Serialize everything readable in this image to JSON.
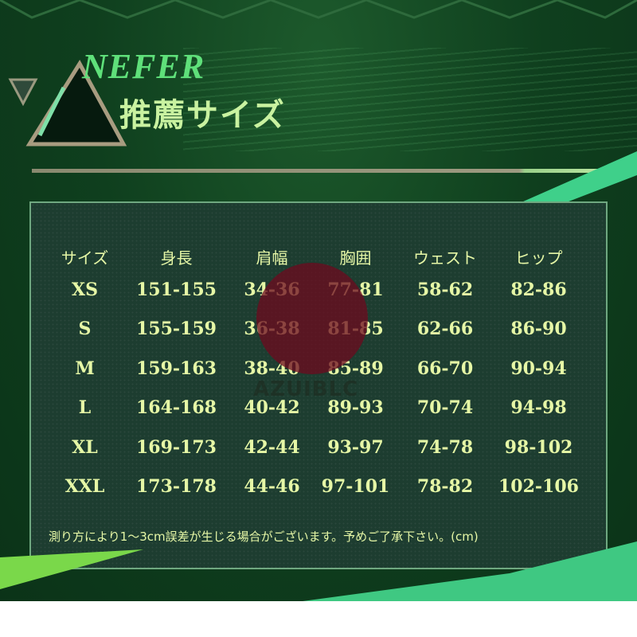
{
  "header": {
    "title_en": "NEFER",
    "title_jp": "推薦サイズ"
  },
  "table": {
    "columns": [
      "サイズ",
      "身長",
      "肩幅",
      "胸囲",
      "ウェスト",
      "ヒップ"
    ],
    "rows": [
      [
        "XS",
        "151-155",
        "34-36",
        "77-81",
        "58-62",
        "82-86"
      ],
      [
        "S",
        "155-159",
        "36-38",
        "81-85",
        "62-66",
        "86-90"
      ],
      [
        "M",
        "159-163",
        "38-40",
        "85-89",
        "66-70",
        "90-94"
      ],
      [
        "L",
        "164-168",
        "40-42",
        "89-93",
        "70-74",
        "94-98"
      ],
      [
        "XL",
        "169-173",
        "42-44",
        "93-97",
        "74-78",
        "98-102"
      ],
      [
        "XXL",
        "173-178",
        "44-46",
        "97-101",
        "78-82",
        "102-106"
      ]
    ]
  },
  "note": "測り方により1～3cm誤差が生じる場合がございます。予めご了承下さい。(cm)",
  "watermark": {
    "text": "AZUIBLC",
    "icon": "rabbit-icon"
  },
  "colors": {
    "background": "#0f3f1e",
    "panel": "#1d3d30",
    "text": "#e6f7a6",
    "accent": "#5fe07a"
  }
}
